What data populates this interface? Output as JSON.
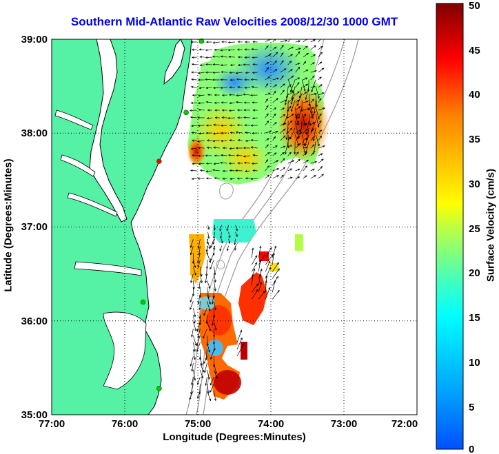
{
  "chart_data": {
    "type": "heatmap",
    "title": "Southern Mid-Atlantic Raw Velocities 2008/12/30 1000 GMT",
    "xlabel": "Longitude (Degrees:Minutes)",
    "ylabel": "Latitude (Degrees:Minutes)",
    "x_ticks": [
      "77:00",
      "76:00",
      "75:00",
      "74:00",
      "73:00",
      "72:00"
    ],
    "y_ticks": [
      "39:00",
      "38:00",
      "37:00",
      "36:00",
      "35:00"
    ],
    "xlim": [
      -77,
      -72
    ],
    "ylim": [
      35,
      39
    ],
    "grid": "dotted",
    "colorbar": {
      "label": "Surface Velocity (cm/s)",
      "range": [
        0,
        50
      ],
      "ticks": [
        "0",
        "5",
        "10",
        "15",
        "20",
        "25",
        "30",
        "35",
        "40",
        "45",
        "50"
      ],
      "colormap": "jet"
    },
    "land_color": "#55f2a6",
    "velocity_regions": [
      {
        "lon_min": -75.05,
        "lon_max": -73.3,
        "lat_min": 37.5,
        "lat_max": 39.0,
        "speed": 17
      },
      {
        "lon_min": -74.9,
        "lon_max": -74.4,
        "lat_min": 36.8,
        "lat_max": 37.05,
        "speed": 16
      },
      {
        "lon_min": -75.1,
        "lon_max": -74.7,
        "lat_min": 35.2,
        "lat_max": 36.9,
        "speed": 32
      },
      {
        "lon_min": -74.3,
        "lon_max": -73.95,
        "lat_min": 36.2,
        "lat_max": 36.7,
        "speed": 40
      },
      {
        "lon_min": -73.8,
        "lon_max": -73.3,
        "lat_min": 37.9,
        "lat_max": 38.6,
        "speed": 45
      },
      {
        "lon_min": -74.5,
        "lon_max": -74.4,
        "lat_min": 35.6,
        "lat_max": 35.8,
        "speed": 48
      }
    ],
    "station_markers": [
      {
        "lon": -74.95,
        "lat": 38.98,
        "color": "#00cc00"
      },
      {
        "lon": -75.16,
        "lat": 38.22,
        "color": "#00cc00"
      },
      {
        "lon": -75.53,
        "lat": 37.7,
        "color": "#ff0000"
      },
      {
        "lon": -75.75,
        "lat": 36.2,
        "color": "#00cc00"
      },
      {
        "lon": -75.53,
        "lat": 35.28,
        "color": "#00cc00"
      }
    ]
  }
}
